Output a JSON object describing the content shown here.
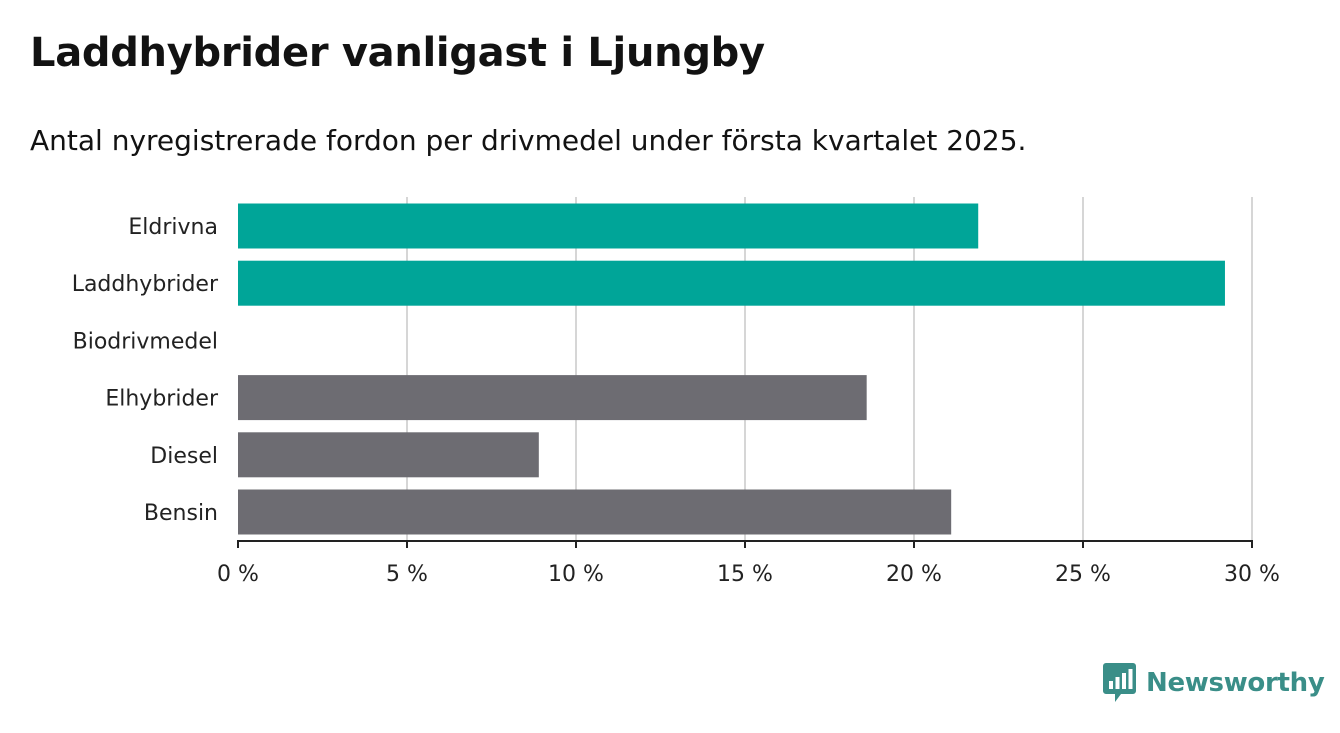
{
  "title": "Laddhybrider vanligast i Ljungby",
  "subtitle": "Antal nyregistrerade fordon per drivmedel under första kvartalet 2025.",
  "brand": {
    "name": "Newsworthy",
    "color": "#3a8e88",
    "icon": "newsworthy-chart-bubble-icon"
  },
  "colors": {
    "highlight": "#00a598",
    "default": "#6d6c72",
    "grid": "#d6d6d6",
    "axis": "#222222"
  },
  "chart_data": {
    "type": "bar",
    "orientation": "horizontal",
    "categories": [
      "Eldrivna",
      "Laddhybrider",
      "Biodrivmedel",
      "Elhybrider",
      "Diesel",
      "Bensin"
    ],
    "values": [
      21.9,
      29.2,
      0,
      18.6,
      8.9,
      21.1
    ],
    "highlighted": [
      true,
      true,
      false,
      false,
      false,
      false
    ],
    "x_ticks": [
      0,
      5,
      10,
      15,
      20,
      25,
      30
    ],
    "x_tick_labels": [
      "0 %",
      "5 %",
      "10 %",
      "15 %",
      "20 %",
      "25 %",
      "30 %"
    ],
    "xlim": [
      0,
      30
    ],
    "xlabel": "",
    "ylabel": "",
    "grid": true,
    "legend": "none"
  }
}
